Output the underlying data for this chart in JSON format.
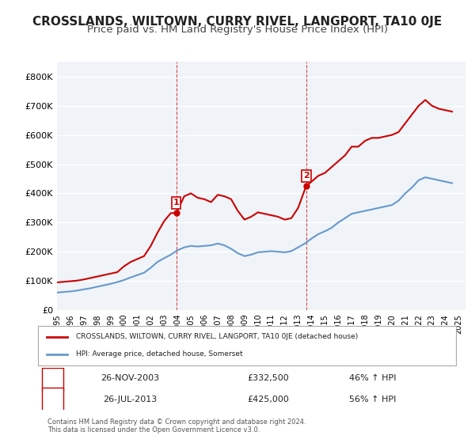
{
  "title": "CROSSLANDS, WILTOWN, CURRY RIVEL, LANGPORT, TA10 0JE",
  "subtitle": "Price paid vs. HM Land Registry's House Price Index (HPI)",
  "title_fontsize": 11,
  "subtitle_fontsize": 9.5,
  "ylim": [
    0,
    850000
  ],
  "yticks": [
    0,
    100000,
    200000,
    300000,
    400000,
    500000,
    600000,
    700000,
    800000
  ],
  "ytick_labels": [
    "£0",
    "£100K",
    "£200K",
    "£300K",
    "£400K",
    "£500K",
    "£600K",
    "£700K",
    "£800K"
  ],
  "background_color": "#ffffff",
  "plot_bg_color": "#f0f4f8",
  "grid_color": "#ffffff",
  "red_line_color": "#cc0000",
  "blue_line_color": "#6699cc",
  "marker1_label": "1",
  "marker2_label": "2",
  "marker1_date": "26-NOV-2003",
  "marker1_price": "£332,500",
  "marker1_hpi": "46% ↑ HPI",
  "marker2_date": "26-JUL-2013",
  "marker2_price": "£425,000",
  "marker2_hpi": "56% ↑ HPI",
  "legend_label1": "CROSSLANDS, WILTOWN, CURRY RIVEL, LANGPORT, TA10 0JE (detached house)",
  "legend_label2": "HPI: Average price, detached house, Somerset",
  "footer1": "Contains HM Land Registry data © Crown copyright and database right 2024.",
  "footer2": "This data is licensed under the Open Government Licence v3.0.",
  "years": [
    1995,
    1996,
    1997,
    1998,
    1999,
    2000,
    2001,
    2002,
    2003,
    2004,
    2005,
    2006,
    2007,
    2008,
    2009,
    2010,
    2011,
    2012,
    2013,
    2014,
    2015,
    2016,
    2017,
    2018,
    2019,
    2020,
    2021,
    2022,
    2023,
    2024,
    2025
  ],
  "red_x": [
    1995.0,
    1995.5,
    1996.0,
    1996.5,
    1997.0,
    1997.5,
    1998.0,
    1998.5,
    1999.0,
    1999.5,
    2000.0,
    2000.5,
    2001.0,
    2001.5,
    2002.0,
    2002.5,
    2003.0,
    2003.5,
    2003.9,
    2004.5,
    2005.0,
    2005.5,
    2006.0,
    2006.5,
    2007.0,
    2007.5,
    2008.0,
    2008.5,
    2009.0,
    2009.5,
    2010.0,
    2010.5,
    2011.0,
    2011.5,
    2012.0,
    2012.5,
    2013.0,
    2013.6,
    2014.0,
    2014.5,
    2015.0,
    2015.5,
    2016.0,
    2016.5,
    2017.0,
    2017.5,
    2018.0,
    2018.5,
    2019.0,
    2019.5,
    2020.0,
    2020.5,
    2021.0,
    2021.5,
    2022.0,
    2022.5,
    2023.0,
    2023.5,
    2024.0,
    2024.5
  ],
  "red_y": [
    95000,
    97000,
    99000,
    101000,
    105000,
    110000,
    115000,
    120000,
    125000,
    130000,
    150000,
    165000,
    175000,
    185000,
    220000,
    265000,
    305000,
    332500,
    332500,
    390000,
    400000,
    385000,
    380000,
    370000,
    395000,
    390000,
    380000,
    340000,
    310000,
    320000,
    335000,
    330000,
    325000,
    320000,
    310000,
    315000,
    350000,
    425000,
    440000,
    460000,
    470000,
    490000,
    510000,
    530000,
    560000,
    560000,
    580000,
    590000,
    590000,
    595000,
    600000,
    610000,
    640000,
    670000,
    700000,
    720000,
    700000,
    690000,
    685000,
    680000
  ],
  "blue_x": [
    1995.0,
    1995.5,
    1996.0,
    1996.5,
    1997.0,
    1997.5,
    1998.0,
    1998.5,
    1999.0,
    1999.5,
    2000.0,
    2000.5,
    2001.0,
    2001.5,
    2002.0,
    2002.5,
    2003.0,
    2003.5,
    2004.0,
    2004.5,
    2005.0,
    2005.5,
    2006.0,
    2006.5,
    2007.0,
    2007.5,
    2008.0,
    2008.5,
    2009.0,
    2009.5,
    2010.0,
    2010.5,
    2011.0,
    2011.5,
    2012.0,
    2012.5,
    2013.0,
    2013.5,
    2014.0,
    2014.5,
    2015.0,
    2015.5,
    2016.0,
    2016.5,
    2017.0,
    2017.5,
    2018.0,
    2018.5,
    2019.0,
    2019.5,
    2020.0,
    2020.5,
    2021.0,
    2021.5,
    2022.0,
    2022.5,
    2023.0,
    2023.5,
    2024.0,
    2024.5
  ],
  "blue_y": [
    60000,
    62000,
    64000,
    67000,
    71000,
    75000,
    80000,
    85000,
    90000,
    96000,
    103000,
    112000,
    120000,
    128000,
    145000,
    165000,
    178000,
    190000,
    205000,
    215000,
    220000,
    218000,
    220000,
    222000,
    228000,
    222000,
    210000,
    195000,
    185000,
    190000,
    198000,
    200000,
    202000,
    200000,
    198000,
    202000,
    215000,
    228000,
    245000,
    260000,
    270000,
    282000,
    300000,
    315000,
    330000,
    335000,
    340000,
    345000,
    350000,
    355000,
    360000,
    375000,
    400000,
    420000,
    445000,
    455000,
    450000,
    445000,
    440000,
    435000
  ],
  "marker1_x": 2003.9,
  "marker1_y": 332500,
  "marker2_x": 2013.6,
  "marker2_y": 425000,
  "vline1_x": 2003.9,
  "vline2_x": 2013.6,
  "xtick_years": [
    1995,
    1996,
    1997,
    1998,
    1999,
    2000,
    2001,
    2002,
    2003,
    2004,
    2005,
    2006,
    2007,
    2008,
    2009,
    2010,
    2011,
    2012,
    2013,
    2014,
    2015,
    2016,
    2017,
    2018,
    2019,
    2020,
    2021,
    2022,
    2023,
    2024,
    2025
  ]
}
